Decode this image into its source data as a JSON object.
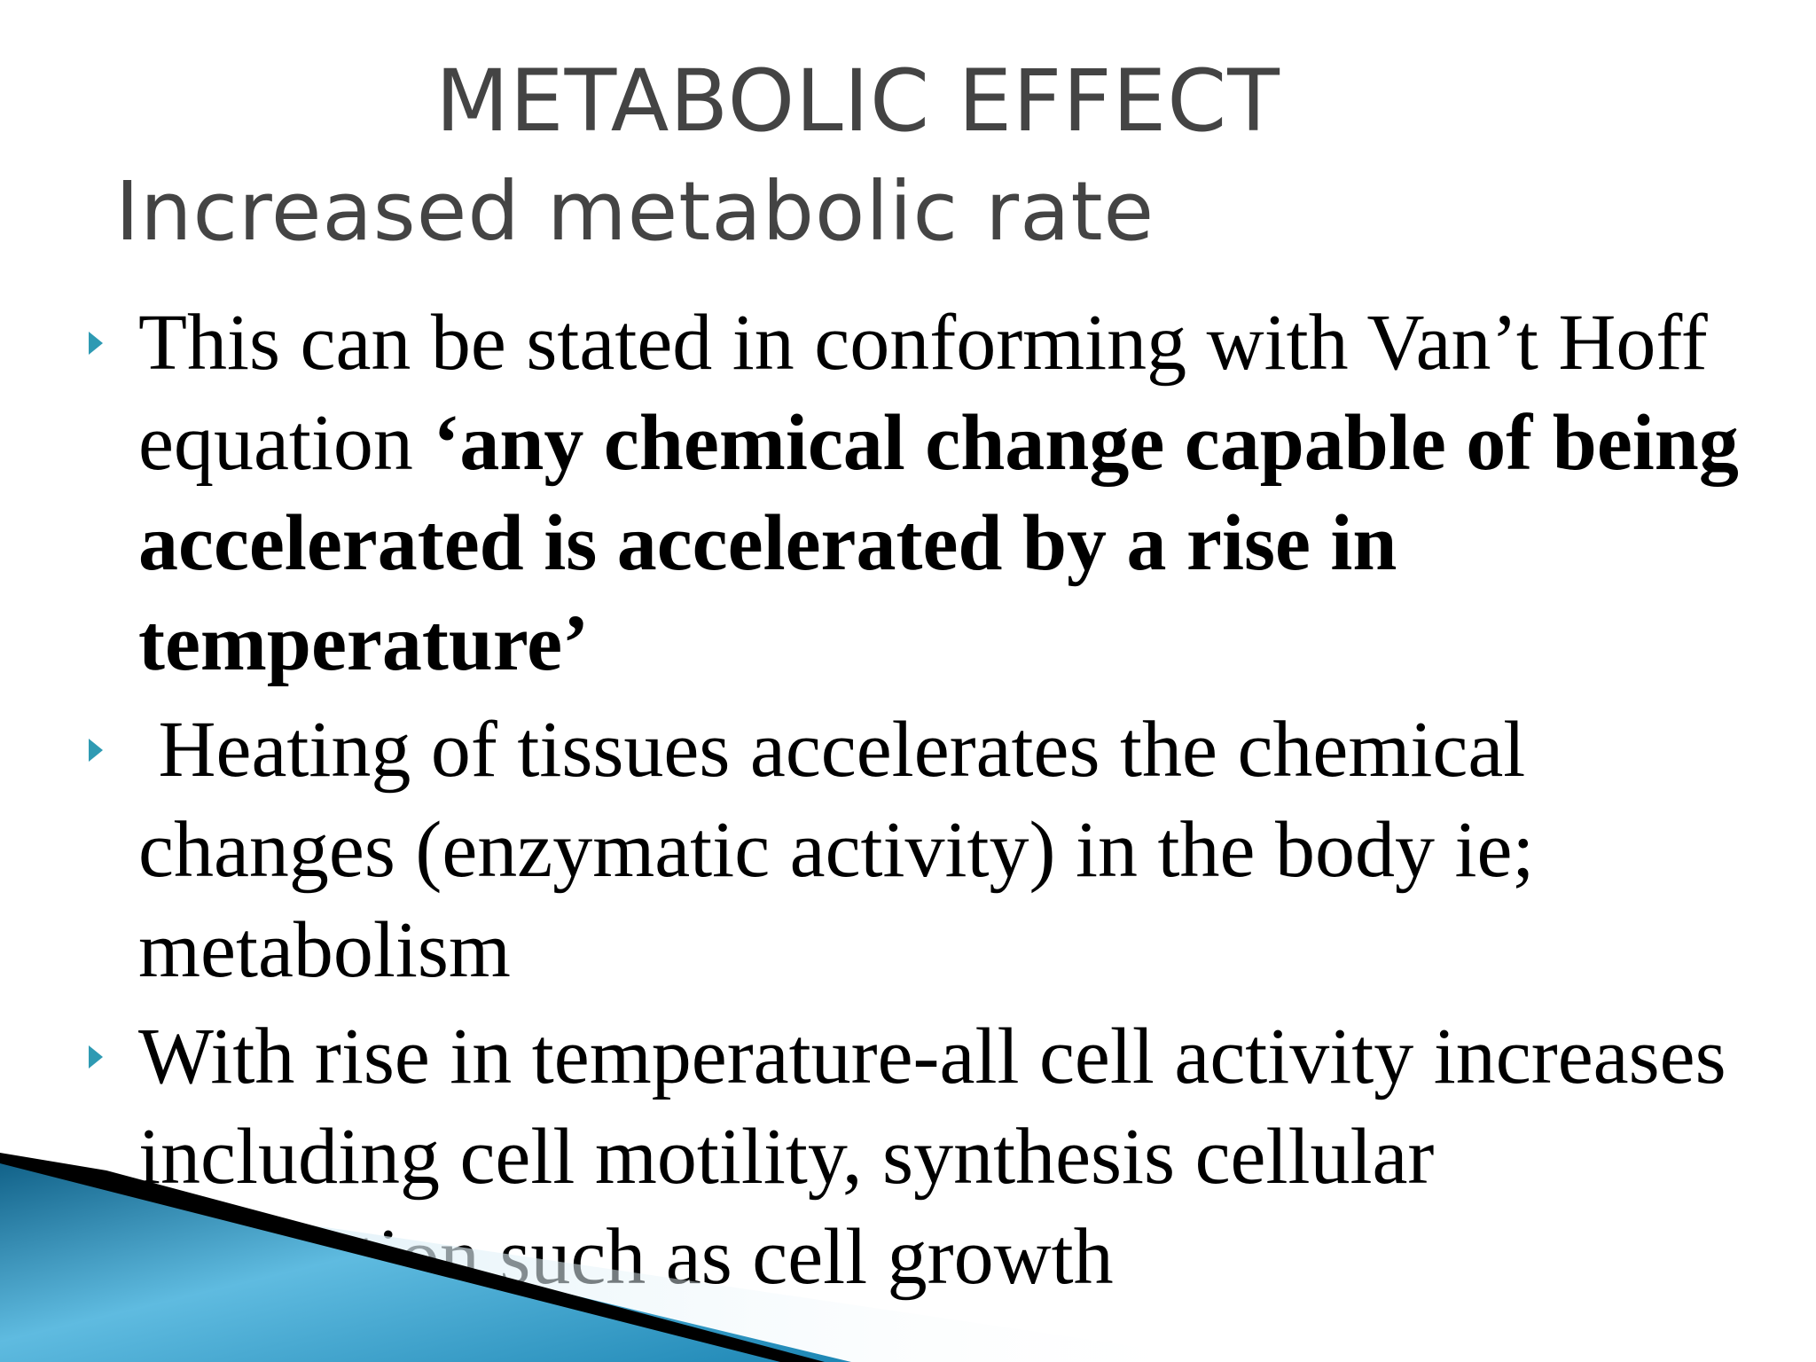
{
  "slide": {
    "title": "METABOLIC EFFECT",
    "subtitle": "Increased metabolic rate",
    "bullets": [
      {
        "plain": "This can be stated in conforming with Van’t Hoff equation ",
        "bold": "‘any chemical change capable of being accelerated is accelerated by a rise in temperature’"
      },
      {
        "plain": " Heating of tissues accelerates the chemical changes (enzymatic activity) in the body ie; metabolism"
      },
      {
        "plain": "With rise in temperature-all cell activity increases including cell motility, synthesis cellular interaction such as cell growth"
      }
    ]
  }
}
